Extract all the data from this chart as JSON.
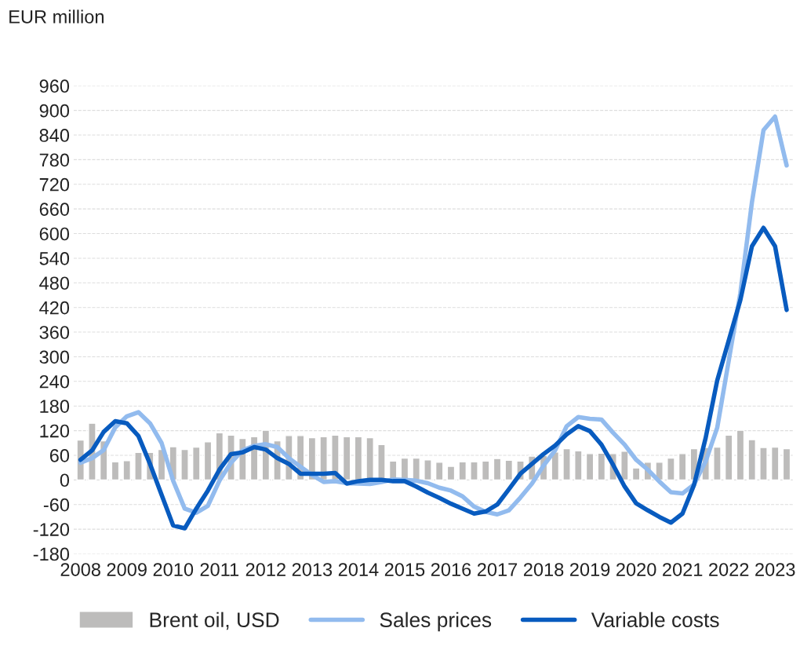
{
  "chart_data": {
    "type": "bar",
    "ylabel": "EUR million",
    "categories": [
      "2008",
      null,
      null,
      null,
      "2009",
      null,
      null,
      null,
      "2010",
      null,
      null,
      null,
      "2011",
      null,
      null,
      null,
      "2012",
      null,
      null,
      null,
      "2013",
      null,
      null,
      null,
      "2014",
      null,
      null,
      null,
      "2015",
      null,
      null,
      null,
      "2016",
      null,
      null,
      null,
      "2017",
      null,
      null,
      null,
      "2018",
      null,
      null,
      null,
      "2019",
      null,
      null,
      null,
      "2020",
      null,
      null,
      null,
      "2021",
      null,
      null,
      null,
      "2022",
      null,
      null,
      null,
      "2023",
      null
    ],
    "series": [
      {
        "name": "Brent oil, USD",
        "color": "#bdbcbb",
        "values": [
          97,
          138,
          95,
          44,
          47,
          67,
          67,
          74,
          81,
          74,
          80,
          93,
          115,
          109,
          101,
          105,
          121,
          95,
          108,
          108,
          103,
          105,
          109,
          105,
          105,
          103,
          86,
          46,
          53,
          53,
          49,
          43,
          33,
          44,
          44,
          46,
          52,
          48,
          46,
          58,
          60,
          68,
          76,
          71,
          64,
          65,
          64,
          70,
          29,
          43,
          43,
          53,
          64,
          76,
          79,
          80,
          109,
          121,
          98,
          79,
          80,
          76
        ]
      },
      {
        "name": "Sales prices",
        "type": "line",
        "color": "#92bbee",
        "values": [
          42,
          53,
          73,
          128,
          155,
          165,
          138,
          90,
          -2,
          -70,
          -80,
          -63,
          -2,
          42,
          72,
          83,
          87,
          80,
          53,
          32,
          12,
          -5,
          -3,
          -8,
          -9,
          -10,
          -5,
          1,
          0,
          -2,
          -8,
          -19,
          -26,
          -40,
          -65,
          -78,
          -84,
          -74,
          -43,
          -9,
          35,
          72,
          131,
          153,
          149,
          147,
          115,
          86,
          49,
          25,
          -4,
          -30,
          -33,
          -11,
          45,
          127,
          291,
          455,
          676,
          852,
          885,
          766
        ]
      },
      {
        "name": "Variable costs",
        "type": "line",
        "color": "#085bbf",
        "values": [
          49,
          72,
          117,
          143,
          138,
          107,
          39,
          -36,
          -111,
          -118,
          -70,
          -26,
          25,
          63,
          67,
          80,
          74,
          53,
          39,
          15,
          15,
          15,
          17,
          -9,
          -3,
          0,
          0,
          -3,
          -3,
          -16,
          -31,
          -44,
          -58,
          -70,
          -82,
          -77,
          -60,
          -23,
          15,
          39,
          63,
          84,
          111,
          131,
          119,
          86,
          37,
          -16,
          -57,
          -74,
          -90,
          -104,
          -82,
          -12,
          102,
          242,
          340,
          438,
          569,
          614,
          569,
          414
        ]
      }
    ],
    "ylim": [
      -180,
      960
    ],
    "yticks": [
      -180,
      -120,
      -60,
      0,
      60,
      120,
      180,
      240,
      300,
      360,
      420,
      480,
      540,
      600,
      660,
      720,
      780,
      840,
      900,
      960
    ],
    "grid": "y",
    "legend": "bottom",
    "line_style": "solid"
  }
}
